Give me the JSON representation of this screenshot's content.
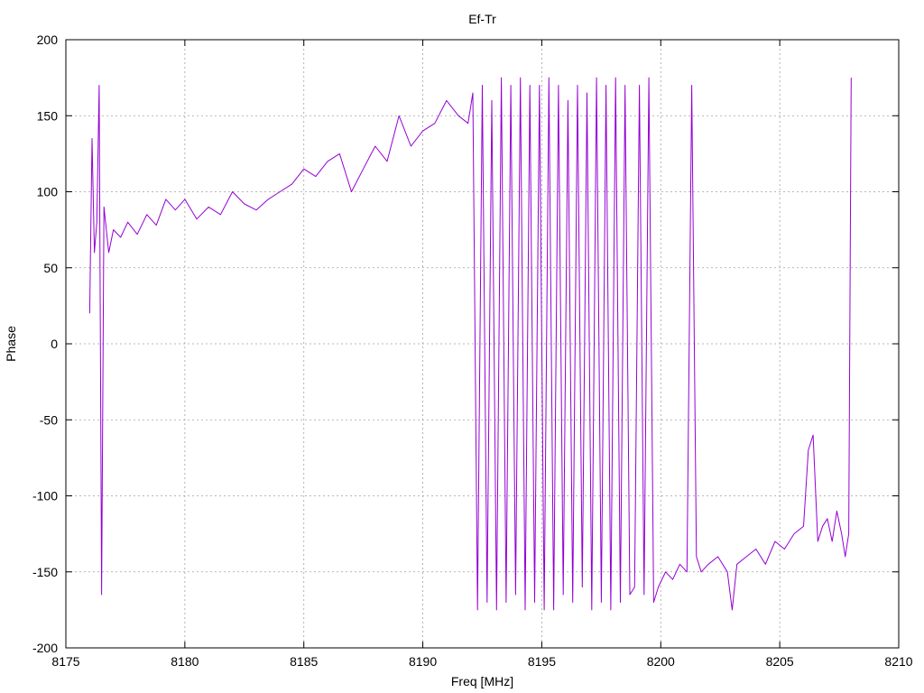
{
  "chart_data": {
    "type": "line",
    "title": "Ef-Tr",
    "xlabel": "Freq [MHz]",
    "ylabel": "Phase",
    "xlim": [
      8175,
      8210
    ],
    "ylim": [
      -200,
      200
    ],
    "xticks": [
      8175,
      8180,
      8185,
      8190,
      8195,
      8200,
      8205,
      8210
    ],
    "yticks": [
      -200,
      -150,
      -100,
      -50,
      0,
      50,
      100,
      150,
      200
    ],
    "grid": true,
    "line_color": "#9400d3",
    "series": [
      {
        "x": [
          8176.0,
          8176.1,
          8176.2,
          8176.3,
          8176.4,
          8176.5,
          8176.6,
          8176.8,
          8177.0,
          8177.3,
          8177.6,
          8178.0,
          8178.4,
          8178.8,
          8179.2,
          8179.6,
          8180.0,
          8180.5,
          8181.0,
          8181.5,
          8182.0,
          8182.5,
          8183.0,
          8183.5,
          8184.0,
          8184.5,
          8185.0,
          8185.5,
          8186.0,
          8186.5,
          8187.0,
          8187.5,
          8188.0,
          8188.5,
          8189.0,
          8189.5,
          8190.0,
          8190.5,
          8191.0,
          8191.5,
          8191.9,
          8192.1,
          8192.3,
          8192.5,
          8192.7,
          8192.9,
          8193.1,
          8193.3,
          8193.5,
          8193.7,
          8193.9,
          8194.1,
          8194.3,
          8194.5,
          8194.7,
          8194.9,
          8195.1,
          8195.3,
          8195.5,
          8195.7,
          8195.9,
          8196.1,
          8196.3,
          8196.5,
          8196.7,
          8196.9,
          8197.1,
          8197.3,
          8197.5,
          8197.7,
          8197.9,
          8198.1,
          8198.3,
          8198.5,
          8198.7,
          8198.9,
          8199.1,
          8199.3,
          8199.5,
          8199.7,
          8199.9,
          8200.2,
          8200.5,
          8200.8,
          8201.1,
          8201.3,
          8201.5,
          8201.7,
          8202.0,
          8202.4,
          8202.8,
          8203.0,
          8203.2,
          8203.6,
          8204.0,
          8204.4,
          8204.8,
          8205.2,
          8205.6,
          8206.0,
          8206.2,
          8206.4,
          8206.6,
          8206.8,
          8207.0,
          8207.2,
          8207.4,
          8207.6,
          8207.75,
          8207.9,
          8208.0
        ],
        "y": [
          20,
          135,
          60,
          80,
          170,
          -165,
          90,
          60,
          75,
          70,
          80,
          72,
          85,
          78,
          95,
          88,
          95,
          82,
          90,
          85,
          100,
          92,
          88,
          95,
          100,
          105,
          115,
          110,
          120,
          125,
          100,
          115,
          130,
          120,
          150,
          130,
          140,
          145,
          160,
          150,
          145,
          165,
          -175,
          170,
          -170,
          160,
          -175,
          175,
          -170,
          170,
          -165,
          175,
          -175,
          170,
          -170,
          170,
          -175,
          175,
          -175,
          170,
          -165,
          160,
          -170,
          170,
          -160,
          165,
          -175,
          175,
          -170,
          170,
          -175,
          175,
          -170,
          170,
          -165,
          -160,
          170,
          -165,
          175,
          -170,
          -160,
          -150,
          -155,
          -145,
          -150,
          170,
          -140,
          -150,
          -145,
          -140,
          -150,
          -175,
          -145,
          -140,
          -135,
          -145,
          -130,
          -135,
          -125,
          -120,
          -70,
          -60,
          -130,
          -120,
          -115,
          -130,
          -110,
          -125,
          -140,
          -125,
          175
        ]
      }
    ]
  }
}
